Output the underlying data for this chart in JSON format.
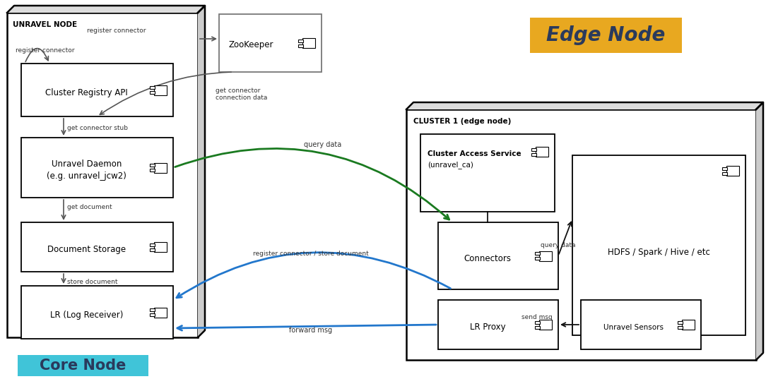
{
  "bg_color": "#ffffff",
  "core_node_label": "UNRAVEL NODE",
  "core_node_badge": "Core Node",
  "core_node_badge_color": "#40c4d8",
  "edge_node_badge": "Edge Node",
  "edge_node_badge_color": "#e8a820",
  "edge_node_text_color": "#2a3a5c",
  "cluster_label": "CLUSTER 1 (edge node)",
  "zookeeper_label": "ZooKeeper",
  "cluster_access_label1": "Cluster Access Service",
  "cluster_access_label2": "(unravel_ca)",
  "hdfs_label": "HDFS / Spark / Hive / etc",
  "connectors_label": "Connectors",
  "lr_proxy_label": "LR Proxy",
  "unravel_sensors_label": "Unravel Sensors",
  "cluster_registry_label": "Cluster Registry API",
  "unravel_daemon_label1": "Unravel Daemon",
  "unravel_daemon_label2": "(e.g. unravel_jcw2)",
  "document_storage_label": "Document Storage",
  "lr_label": "LR (Log Receiver)",
  "arrow_gray": "#555555",
  "arrow_green": "#1a7a20",
  "arrow_blue": "#2277cc",
  "arrow_black": "#111111"
}
